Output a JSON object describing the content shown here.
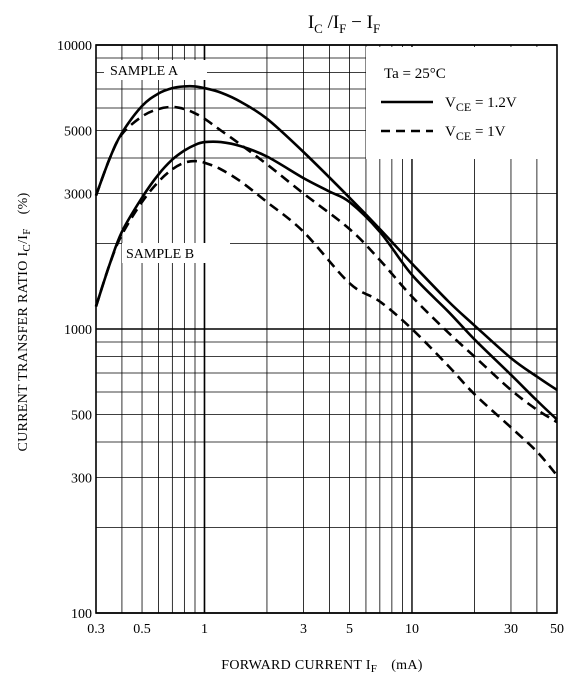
{
  "chart_data": {
    "type": "line",
    "title": {
      "main": "I",
      "sub1": "C",
      "mid": " /I",
      "sub2": "F",
      "dash": " − I",
      "sub3": "F"
    },
    "xlabel": {
      "main": "FORWARD CURRENT   I",
      "sub": "F",
      "unit": "(mA)"
    },
    "ylabel": {
      "main": "CURRENT TRANSFER RATIO   I",
      "sub1": "C",
      "mid": "/I",
      "sub2": "F",
      "unit": "(%)"
    },
    "x_scale": "log",
    "y_scale": "log",
    "xlim": [
      0.3,
      50
    ],
    "ylim": [
      100,
      10000
    ],
    "grid": true,
    "x_ticks": [
      {
        "value": 0.3,
        "label": "0.3"
      },
      {
        "value": 0.5,
        "label": "0.5"
      },
      {
        "value": 1,
        "label": "1"
      },
      {
        "value": 3,
        "label": "3"
      },
      {
        "value": 5,
        "label": "5"
      },
      {
        "value": 10,
        "label": "10"
      },
      {
        "value": 30,
        "label": "30"
      },
      {
        "value": 50,
        "label": "50"
      }
    ],
    "y_ticks": [
      {
        "value": 100,
        "label": "100"
      },
      {
        "value": 300,
        "label": "300"
      },
      {
        "value": 500,
        "label": "500"
      },
      {
        "value": 1000,
        "label": "1000"
      },
      {
        "value": 3000,
        "label": "3000"
      },
      {
        "value": 5000,
        "label": "5000"
      },
      {
        "value": 10000,
        "label": "10000"
      }
    ],
    "legend": {
      "placement": "top-right",
      "condition": "Ta = 25°C",
      "entries": [
        {
          "prefix": "V",
          "sub": "CE",
          "suffix": " = 1.2V",
          "style": "solid"
        },
        {
          "prefix": "V",
          "sub": "CE",
          "suffix": " = 1V",
          "style": "dashed"
        }
      ]
    },
    "annotations": [
      {
        "text": "SAMPLE A"
      },
      {
        "text": "SAMPLE B"
      }
    ],
    "series": [
      {
        "sample": "A",
        "style": "solid",
        "x": [
          0.3,
          0.35,
          0.4,
          0.5,
          0.6,
          0.7,
          0.8,
          0.9,
          1.0,
          1.2,
          1.5,
          2,
          3,
          5,
          7,
          10,
          15,
          20,
          30,
          40,
          50
        ],
        "y": [
          2950,
          4000,
          4900,
          6100,
          6750,
          7050,
          7150,
          7150,
          7050,
          6800,
          6300,
          5500,
          4200,
          2900,
          2250,
          1700,
          1250,
          1030,
          790,
          680,
          610
        ]
      },
      {
        "sample": "A",
        "style": "dashed",
        "x": [
          0.3,
          0.35,
          0.4,
          0.5,
          0.6,
          0.7,
          0.8,
          0.9,
          1.0,
          1.2,
          1.5,
          2,
          3,
          5,
          7,
          10,
          15,
          20,
          30,
          40,
          50
        ],
        "y": [
          2950,
          4000,
          4850,
          5600,
          5950,
          6050,
          5950,
          5750,
          5500,
          5000,
          4450,
          3800,
          3000,
          2250,
          1750,
          1300,
          970,
          800,
          610,
          520,
          470
        ]
      },
      {
        "sample": "B",
        "style": "solid",
        "x": [
          0.3,
          0.35,
          0.4,
          0.5,
          0.6,
          0.7,
          0.8,
          0.9,
          1.0,
          1.2,
          1.5,
          2,
          3,
          4,
          5,
          7,
          10,
          15,
          20,
          30,
          40,
          50
        ],
        "y": [
          1200,
          1700,
          2200,
          2900,
          3500,
          3950,
          4250,
          4450,
          4550,
          4550,
          4400,
          4050,
          3400,
          3050,
          2800,
          2200,
          1550,
          1150,
          920,
          690,
          560,
          480
        ]
      },
      {
        "sample": "B",
        "style": "dashed",
        "x": [
          0.3,
          0.35,
          0.4,
          0.5,
          0.6,
          0.7,
          0.8,
          0.9,
          1.0,
          1.2,
          1.5,
          2,
          3,
          5,
          7,
          10,
          15,
          20,
          30,
          40,
          50
        ],
        "y": [
          1200,
          1700,
          2150,
          2800,
          3300,
          3650,
          3850,
          3900,
          3850,
          3650,
          3300,
          2800,
          2200,
          1450,
          1250,
          1000,
          740,
          590,
          450,
          370,
          305
        ]
      }
    ]
  }
}
